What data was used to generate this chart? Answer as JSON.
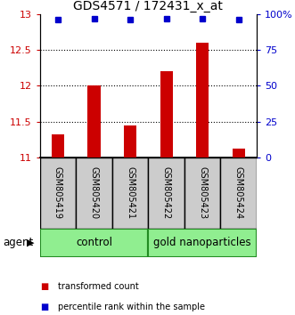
{
  "title": "GDS4571 / 172431_x_at",
  "samples": [
    "GSM805419",
    "GSM805420",
    "GSM805421",
    "GSM805422",
    "GSM805423",
    "GSM805424"
  ],
  "bar_values": [
    11.32,
    12.0,
    11.45,
    12.2,
    12.6,
    11.12
  ],
  "bar_bottom": 11.0,
  "percentile_values": [
    96,
    97,
    96,
    97,
    97,
    96
  ],
  "bar_color": "#cc0000",
  "percentile_color": "#0000cc",
  "ylim_left": [
    11.0,
    13.0
  ],
  "ylim_right": [
    0,
    100
  ],
  "yticks_left": [
    11.0,
    11.5,
    12.0,
    12.5,
    13.0
  ],
  "yticks_right": [
    0,
    25,
    50,
    75,
    100
  ],
  "ytick_labels_left": [
    "11",
    "11.5",
    "12",
    "12.5",
    "13"
  ],
  "ytick_labels_right": [
    "0",
    "25",
    "50",
    "75",
    "100%"
  ],
  "group_ranges": [
    [
      0,
      3,
      "control"
    ],
    [
      3,
      6,
      "gold nanoparticles"
    ]
  ],
  "agent_label": "agent",
  "legend_items": [
    {
      "color": "#cc0000",
      "label": "transformed count"
    },
    {
      "color": "#0000cc",
      "label": "percentile rank within the sample"
    }
  ],
  "sample_box_color": "#cccccc",
  "group_fill_color": "#90ee90",
  "group_edge_color": "#228B22"
}
